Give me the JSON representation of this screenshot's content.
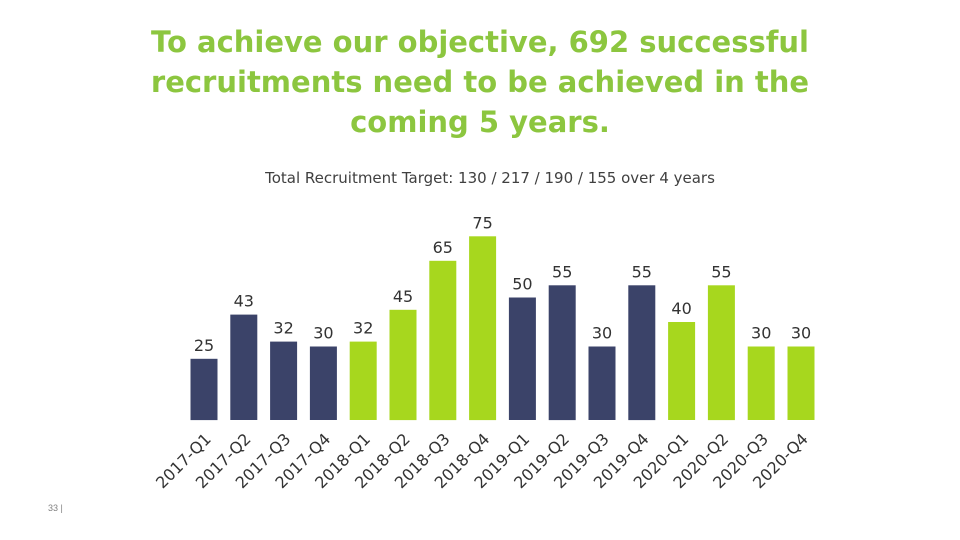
{
  "slide": {
    "title_lines": [
      "To achieve our objective, 692 successful",
      "recruitments need to be achieved in the",
      "coming 5 years."
    ],
    "page_number": "33 |"
  },
  "chart_data": {
    "type": "bar",
    "title": "Total Recruitment Target: 130 / 217 / 190 / 155 over 4 years",
    "categories": [
      "2017-Q1",
      "2017-Q2",
      "2017-Q3",
      "2017-Q4",
      "2018-Q1",
      "2018-Q2",
      "2018-Q3",
      "2018-Q4",
      "2019-Q1",
      "2019-Q2",
      "2019-Q3",
      "2019-Q4",
      "2020-Q1",
      "2020-Q2",
      "2020-Q3",
      "2020-Q4"
    ],
    "values": [
      25,
      43,
      32,
      30,
      32,
      45,
      65,
      75,
      50,
      55,
      30,
      55,
      40,
      55,
      30,
      30
    ],
    "bar_colors": [
      "#3B4369",
      "#3B4369",
      "#3B4369",
      "#3B4369",
      "#A7D71E",
      "#A7D71E",
      "#A7D71E",
      "#A7D71E",
      "#3B4369",
      "#3B4369",
      "#3B4369",
      "#3B4369",
      "#A7D71E",
      "#A7D71E",
      "#A7D71E",
      "#A7D71E"
    ],
    "colors": {
      "navy": "#3B4369",
      "green": "#A7D71E",
      "title": "#8CC63F"
    },
    "ylim": [
      0,
      75
    ],
    "data_labels": true,
    "grid": false,
    "legend": "none"
  }
}
